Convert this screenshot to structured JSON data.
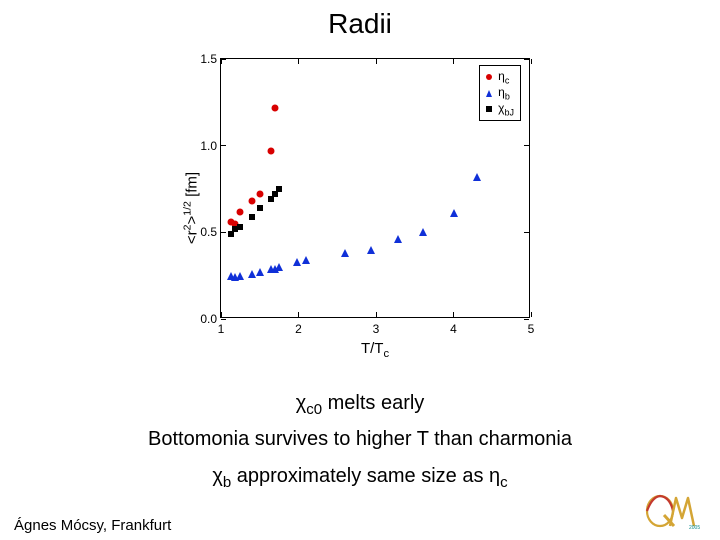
{
  "title": "Radii",
  "chart": {
    "type": "scatter",
    "background_color": "#ffffff",
    "border_color": "#000000",
    "xlim": [
      1,
      5
    ],
    "ylim": [
      0.0,
      1.5
    ],
    "xticks": [
      1,
      2,
      3,
      4,
      5
    ],
    "yticks": [
      0.0,
      0.5,
      1.0,
      1.5
    ],
    "ytick_labels": [
      "0.0",
      "0.5",
      "1.0",
      "1.5"
    ],
    "xtick_labels": [
      "1",
      "2",
      "3",
      "4",
      "5"
    ],
    "xlabel_html": "T/T<sub>c</sub>",
    "ylabel_html": "&lt;r<sup>2</sup>&gt;<sup>1/2</sup> [fm]",
    "label_fontsize": 15,
    "tick_fontsize": 12,
    "series": [
      {
        "name": "eta_c",
        "label_html": "η<sub>c</sub>",
        "marker": "circle",
        "color": "#d80000",
        "size": 7,
        "points": [
          {
            "x": 1.13,
            "y": 0.56
          },
          {
            "x": 1.18,
            "y": 0.55
          },
          {
            "x": 1.25,
            "y": 0.62
          },
          {
            "x": 1.4,
            "y": 0.68
          },
          {
            "x": 1.5,
            "y": 0.72
          },
          {
            "x": 1.65,
            "y": 0.97
          },
          {
            "x": 1.7,
            "y": 1.22
          }
        ]
      },
      {
        "name": "eta_b",
        "label_html": "η<sub>b</sub>",
        "marker": "triangle",
        "color": "#1030d8",
        "size": 8,
        "points": [
          {
            "x": 1.13,
            "y": 0.25
          },
          {
            "x": 1.18,
            "y": 0.24
          },
          {
            "x": 1.25,
            "y": 0.25
          },
          {
            "x": 1.4,
            "y": 0.26
          },
          {
            "x": 1.5,
            "y": 0.27
          },
          {
            "x": 1.65,
            "y": 0.29
          },
          {
            "x": 1.7,
            "y": 0.29
          },
          {
            "x": 1.75,
            "y": 0.3
          },
          {
            "x": 1.98,
            "y": 0.33
          },
          {
            "x": 2.1,
            "y": 0.34
          },
          {
            "x": 2.6,
            "y": 0.38
          },
          {
            "x": 2.93,
            "y": 0.4
          },
          {
            "x": 3.29,
            "y": 0.46
          },
          {
            "x": 3.6,
            "y": 0.5
          },
          {
            "x": 4.0,
            "y": 0.61
          },
          {
            "x": 4.3,
            "y": 0.82
          }
        ]
      },
      {
        "name": "chi_bj",
        "label_html": "χ<sub>bJ</sub>",
        "marker": "square",
        "color": "#000000",
        "size": 6,
        "points": [
          {
            "x": 1.13,
            "y": 0.49
          },
          {
            "x": 1.18,
            "y": 0.52
          },
          {
            "x": 1.25,
            "y": 0.53
          },
          {
            "x": 1.4,
            "y": 0.59
          },
          {
            "x": 1.5,
            "y": 0.64
          },
          {
            "x": 1.65,
            "y": 0.69
          },
          {
            "x": 1.7,
            "y": 0.72
          },
          {
            "x": 1.75,
            "y": 0.75
          }
        ]
      }
    ],
    "legend": {
      "position": "top-right",
      "border_color": "#000000",
      "background_color": "#ffffff"
    }
  },
  "captions": {
    "line1_html": "χ<sub>c0</sub> melts early",
    "line2_html": "Bottomonia survives to higher T than charmonia",
    "line3_html": "χ<sub>b</sub> approximately same size as η<sub>c</sub>"
  },
  "footer": "Ágnes Mócsy, Frankfurt",
  "logo": {
    "colors": {
      "gold": "#d4a535",
      "red": "#c43a2e",
      "text": "#098a8a"
    },
    "text": "QM"
  }
}
